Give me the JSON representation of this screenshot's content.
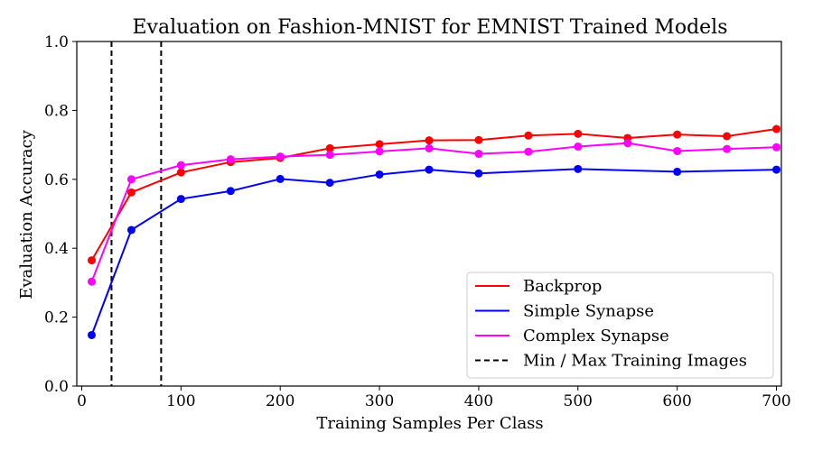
{
  "chart_data": {
    "type": "line",
    "title": "Evaluation on Fashion-MNIST for EMNIST Trained Models",
    "xlabel": "Training Samples Per Class",
    "ylabel": "Evaluation Accuracy",
    "xlim": [
      -5,
      705
    ],
    "ylim": [
      0.0,
      1.0
    ],
    "xticks": [
      0,
      100,
      200,
      300,
      400,
      500,
      600,
      700
    ],
    "yticks": [
      0.0,
      0.2,
      0.4,
      0.6,
      0.8,
      1.0
    ],
    "xtick_labels": [
      "0",
      "100",
      "200",
      "300",
      "400",
      "500",
      "600",
      "700"
    ],
    "ytick_labels": [
      "0.0",
      "0.2",
      "0.4",
      "0.6",
      "0.8",
      "1.0"
    ],
    "grid": false,
    "legend_position": "lower-right",
    "x": [
      10,
      50,
      100,
      150,
      200,
      250,
      300,
      350,
      400,
      450,
      500,
      550,
      600,
      650,
      700
    ],
    "series": [
      {
        "name": "Backprop",
        "color": "#ff0000",
        "values": [
          0.365,
          0.562,
          0.62,
          0.65,
          0.662,
          0.69,
          0.702,
          0.713,
          0.714,
          0.727,
          0.732,
          0.72,
          0.73,
          0.725,
          0.746
        ]
      },
      {
        "name": "Simple Synapse",
        "color": "#0000ff",
        "values": [
          0.148,
          0.453,
          0.543,
          0.566,
          0.601,
          0.59,
          0.614,
          0.628,
          0.617,
          null,
          0.63,
          null,
          0.622,
          null,
          0.628
        ]
      },
      {
        "name": "Complex Synapse",
        "color": "#ff00ff",
        "values": [
          0.303,
          0.6,
          0.641,
          0.658,
          0.666,
          0.671,
          0.681,
          0.69,
          0.674,
          0.68,
          0.695,
          0.705,
          0.682,
          0.688,
          0.693
        ]
      }
    ],
    "vlines": {
      "name": "Min / Max Training Images",
      "color": "#000000",
      "style": "dashed",
      "x": [
        30,
        80
      ]
    }
  }
}
